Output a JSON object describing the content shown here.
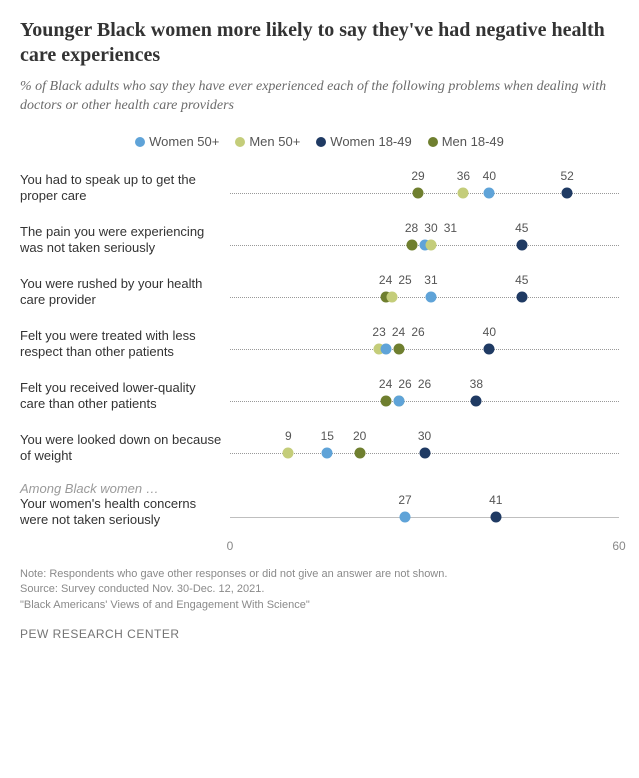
{
  "title": "Younger Black women more likely to say they've had negative health care experiences",
  "subtitle": "% of Black adults who say they have ever experienced each of the following problems when dealing with doctors or other health care providers",
  "scale": {
    "min": 0,
    "max": 60
  },
  "legend": [
    {
      "key": "w50",
      "label": "Women 50+",
      "color": "#5fa3d8"
    },
    {
      "key": "m50",
      "label": "Men 50+",
      "color": "#c4cd7a"
    },
    {
      "key": "w18",
      "label": "Women 18-49",
      "color": "#1f3a63"
    },
    {
      "key": "m18",
      "label": "Men 18-49",
      "color": "#6f7f2f"
    }
  ],
  "rows": [
    {
      "label": "You had to speak up to get the proper care",
      "points": [
        {
          "series": "m18",
          "value": 29
        },
        {
          "series": "m50",
          "value": 36
        },
        {
          "series": "w50",
          "value": 40
        },
        {
          "series": "w18",
          "value": 52
        }
      ]
    },
    {
      "label": "The pain you were experiencing was not taken seriously",
      "points": [
        {
          "series": "m18",
          "value": 28
        },
        {
          "series": "w50",
          "value": 30
        },
        {
          "series": "m50",
          "value": 31
        },
        {
          "series": "w18",
          "value": 45
        }
      ]
    },
    {
      "label": "You were rushed by your health care provider",
      "points": [
        {
          "series": "m18",
          "value": 24
        },
        {
          "series": "m50",
          "value": 25
        },
        {
          "series": "w50",
          "value": 31
        },
        {
          "series": "w18",
          "value": 45
        }
      ]
    },
    {
      "label": "Felt you were treated with less respect than other patients",
      "points": [
        {
          "series": "m50",
          "value": 23
        },
        {
          "series": "w50",
          "value": 24
        },
        {
          "series": "m18",
          "value": 26
        },
        {
          "series": "w18",
          "value": 40
        }
      ]
    },
    {
      "label": "Felt you received lower-quality care than other patients",
      "points": [
        {
          "series": "m18",
          "value": 24
        },
        {
          "series": "m50",
          "value": 26
        },
        {
          "series": "w50",
          "value": 26
        },
        {
          "series": "w18",
          "value": 38
        }
      ]
    },
    {
      "label": "You were looked down on because of weight",
      "points": [
        {
          "series": "m50",
          "value": 9
        },
        {
          "series": "w50",
          "value": 15
        },
        {
          "series": "m18",
          "value": 20
        },
        {
          "series": "w18",
          "value": 30
        }
      ]
    }
  ],
  "subhead": "Among Black women …",
  "sub_rows": [
    {
      "label": "Your women's health concerns were not taken seriously",
      "solid": true,
      "points": [
        {
          "series": "w50",
          "value": 27
        },
        {
          "series": "w18",
          "value": 41
        }
      ]
    }
  ],
  "axis": {
    "left": "0",
    "right": "60"
  },
  "note": "Note: Respondents who gave other responses or did not give an answer are not shown.",
  "source": "Source: Survey conducted Nov. 30-Dec. 12, 2021.",
  "report": "\"Black Americans' Views of and Engagement With Science\"",
  "footer": "PEW RESEARCH CENTER"
}
